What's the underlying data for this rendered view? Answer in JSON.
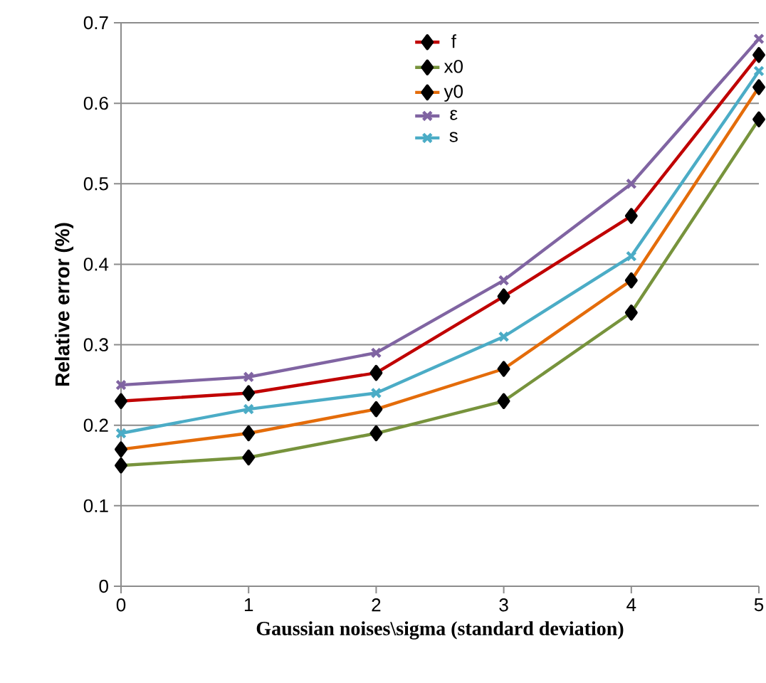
{
  "chart_data": {
    "type": "line",
    "xlabel": "Gaussian noises\\sigma (standard deviation)",
    "ylabel": "Relative error  (%)",
    "x": [
      0,
      1,
      2,
      3,
      4,
      5
    ],
    "series": [
      {
        "name": "f",
        "color": "#c00000",
        "marker": "diamond",
        "values": [
          0.23,
          0.24,
          0.265,
          0.36,
          0.46,
          0.66
        ]
      },
      {
        "name": "x0",
        "color": "#77933c",
        "marker": "diamond",
        "values": [
          0.15,
          0.16,
          0.19,
          0.23,
          0.34,
          0.58
        ]
      },
      {
        "name": "y0",
        "color": "#e46c0a",
        "marker": "diamond",
        "values": [
          0.17,
          0.19,
          0.22,
          0.27,
          0.38,
          0.62
        ]
      },
      {
        "name": "ε",
        "color": "#8064a2",
        "marker": "cross",
        "values": [
          0.25,
          0.26,
          0.29,
          0.38,
          0.5,
          0.68
        ]
      },
      {
        "name": "s",
        "color": "#4bacc6",
        "marker": "cross",
        "values": [
          0.19,
          0.22,
          0.24,
          0.31,
          0.41,
          0.64
        ]
      }
    ],
    "xlim": [
      0,
      5
    ],
    "xticks": [
      0,
      1,
      2,
      3,
      4,
      5
    ],
    "ylim": [
      0,
      0.7
    ],
    "yticks": [
      0,
      0.1,
      0.2,
      0.3,
      0.4,
      0.5,
      0.6,
      0.7
    ],
    "grid": "y",
    "legend": "top"
  }
}
